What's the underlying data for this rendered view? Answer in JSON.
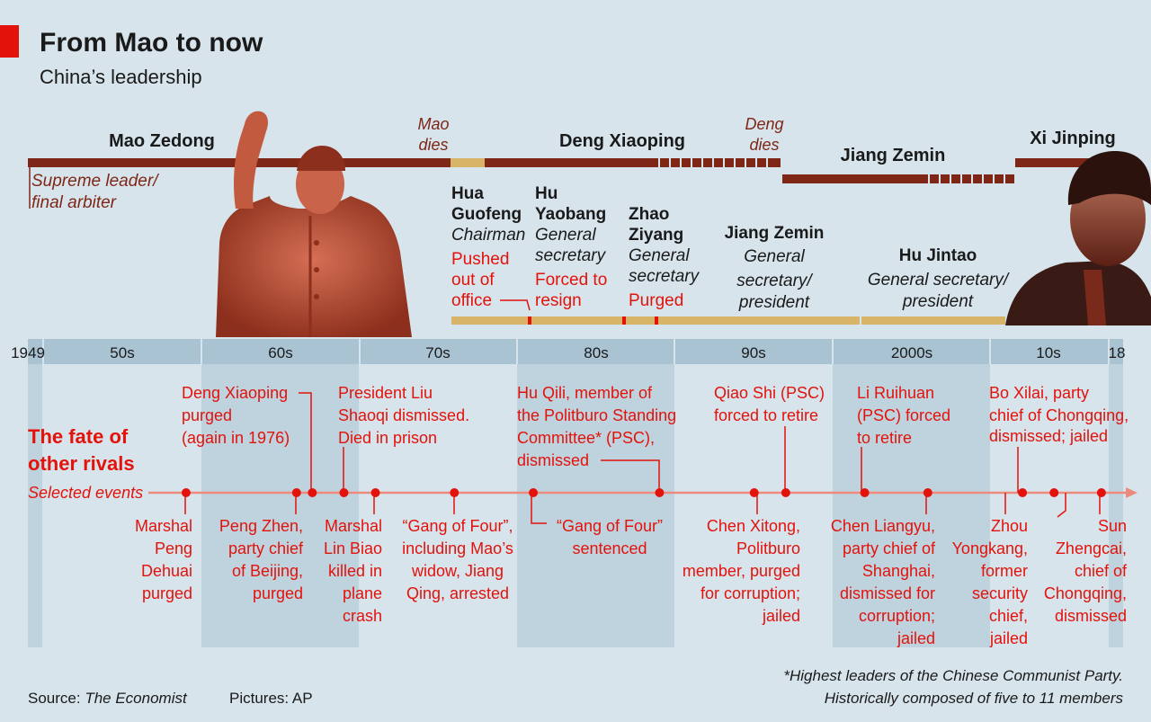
{
  "header": {
    "title": "From Mao to now",
    "subtitle": "China’s leadership"
  },
  "leaders": {
    "mao": "Mao Zedong",
    "mao_role": [
      "Supreme leader/",
      "final arbiter"
    ],
    "mao_dies": [
      "Mao",
      "dies"
    ],
    "deng": "Deng Xiaoping",
    "deng_dies": [
      "Deng",
      "dies"
    ],
    "jiang_top": "Jiang Zemin",
    "xi": "Xi Jinping"
  },
  "officials": {
    "hua": {
      "name": [
        "Hua",
        "Guofeng"
      ],
      "role": [
        "Chairman"
      ],
      "fate": [
        "Pushed",
        "out of",
        "office"
      ]
    },
    "hu_yaobang": {
      "name": [
        "Hu",
        "Yaobang"
      ],
      "role": [
        "General",
        "secretary"
      ],
      "fate": [
        "Forced to",
        "resign"
      ]
    },
    "zhao": {
      "name": [
        "Zhao",
        "Ziyang"
      ],
      "role": [
        "General",
        "secretary"
      ],
      "fate": [
        "Purged"
      ]
    },
    "jiang": {
      "name": [
        "Jiang Zemin"
      ],
      "role": [
        "General",
        "secretary/",
        "president"
      ]
    },
    "hu_jintao": {
      "name": [
        "Hu Jintao"
      ],
      "role": [
        "General secretary/",
        "president"
      ]
    }
  },
  "axis": {
    "start_label": "1949",
    "end_label": "18",
    "decades": [
      "50s",
      "60s",
      "70s",
      "80s",
      "90s",
      "2000s",
      "10s"
    ]
  },
  "rivals": {
    "heading": [
      "The fate of",
      "other rivals"
    ],
    "subheading": "Selected events"
  },
  "events_above": [
    {
      "lines": [
        "Deng Xiaoping",
        "purged",
        "(again in 1976)"
      ]
    },
    {
      "lines": [
        "President Liu",
        "Shaoqi dismissed.",
        "Died in prison"
      ]
    },
    {
      "lines": [
        "Hu Qili, member of",
        "the Politburo Standing",
        "Committee* (PSC),",
        "dismissed"
      ]
    },
    {
      "lines": [
        "Qiao Shi (PSC)",
        "forced to retire"
      ]
    },
    {
      "lines": [
        "Li Ruihuan",
        "(PSC) forced",
        "to retire"
      ]
    },
    {
      "lines": [
        "Bo Xilai, party",
        "chief of Chongqing,",
        "dismissed; jailed"
      ]
    }
  ],
  "events_below": [
    {
      "lines": [
        "Marshal",
        "Peng",
        "Dehuai",
        "purged"
      ]
    },
    {
      "lines": [
        "Peng Zhen,",
        "party chief",
        "of Beijing,",
        "purged"
      ]
    },
    {
      "lines": [
        "Marshal",
        "Lin Biao",
        "killed in",
        "plane",
        "crash"
      ]
    },
    {
      "lines": [
        "“Gang of Four”,",
        "including Mao’s",
        "widow, Jiang",
        "Qing, arrested"
      ]
    },
    {
      "lines": [
        "“Gang of Four”",
        "sentenced"
      ]
    },
    {
      "lines": [
        "Chen Xitong,",
        "Politburo",
        "member, purged",
        "for corruption;",
        "jailed"
      ]
    },
    {
      "lines": [
        "Chen Liangyu,",
        "party chief of",
        "Shanghai,",
        "dismissed for",
        "corruption;",
        "jailed"
      ]
    },
    {
      "lines": [
        "Zhou",
        "Yongkang,",
        "former",
        "security",
        "chief,",
        "jailed"
      ]
    },
    {
      "lines": [
        "Sun",
        "Zhengcai,",
        "chief of",
        "Chongqing,",
        "dismissed"
      ]
    }
  ],
  "footnote": [
    "*Highest leaders of the Chinese Communist Party.",
    "Historically composed of five to 11 members"
  ],
  "source": {
    "label": "Source: ",
    "name": "The Economist",
    "pictures": "Pictures: AP"
  },
  "colors": {
    "background": "#d7e4ec",
    "band": "#a9c3d3",
    "leader_bar": "#7e2716",
    "official_bar": "#d8b468",
    "accent_red": "#e3120b",
    "event_line": "#ec8a7e",
    "text_dark": "#1a1a1a",
    "text_brown": "#7e2716"
  },
  "chart_data": {
    "type": "timeline",
    "x_range": [
      1949,
      2018
    ],
    "paramount_leaders": [
      {
        "name": "Mao Zedong",
        "start": 1949,
        "end": 1976
      },
      {
        "name": "Deng Xiaoping",
        "start": 1978,
        "end": 1997
      },
      {
        "name": "Jiang Zemin",
        "start": 1997,
        "end": 2002
      },
      {
        "name": "Xi Jinping",
        "start": 2012,
        "end": 2018
      }
    ],
    "official_leaders": [
      {
        "name": "Hua Guofeng",
        "start": 1976,
        "end": 1981
      },
      {
        "name": "Hu Yaobang",
        "start": 1981,
        "end": 1987
      },
      {
        "name": "Zhao Ziyang",
        "start": 1987,
        "end": 1989
      },
      {
        "name": "Jiang Zemin",
        "start": 1989,
        "end": 2002
      },
      {
        "name": "Hu Jintao",
        "start": 2002,
        "end": 2012
      }
    ],
    "rival_events_years": [
      1959,
      1966,
      1967,
      1969,
      1971,
      1976,
      1981,
      1989,
      1995,
      1997,
      2002,
      2006,
      2012,
      2014,
      2017
    ]
  }
}
